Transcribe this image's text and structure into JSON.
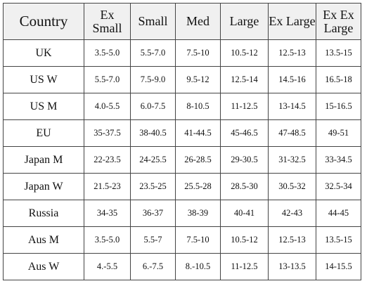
{
  "table": {
    "headers": [
      "Country",
      "Ex Small",
      "Small",
      "Med",
      "Large",
      "Ex Large",
      "Ex Ex Large"
    ],
    "rows": [
      [
        "UK",
        "3.5-5.0",
        "5.5-7.0",
        "7.5-10",
        "10.5-12",
        "12.5-13",
        "13.5-15"
      ],
      [
        "US W",
        "5.5-7.0",
        "7.5-9.0",
        "9.5-12",
        "12.5-14",
        "14.5-16",
        "16.5-18"
      ],
      [
        "US M",
        "4.0-5.5",
        "6.0-7.5",
        "8-10.5",
        "11-12.5",
        "13-14.5",
        "15-16.5"
      ],
      [
        "EU",
        "35-37.5",
        "38-40.5",
        "41-44.5",
        "45-46.5",
        "47-48.5",
        "49-51"
      ],
      [
        "Japan M",
        "22-23.5",
        "24-25.5",
        "26-28.5",
        "29-30.5",
        "31-32.5",
        "33-34.5"
      ],
      [
        "Japan W",
        "21.5-23",
        "23.5-25",
        "25.5-28",
        "28.5-30",
        "30.5-32",
        "32.5-34"
      ],
      [
        "Russia",
        "34-35",
        "36-37",
        "38-39",
        "40-41",
        "42-43",
        "44-45"
      ],
      [
        "Aus M",
        "3.5-5.0",
        "5.5-7",
        "7.5-10",
        "10.5-12",
        "12.5-13",
        "13.5-15"
      ],
      [
        "Aus W",
        "4.-5.5",
        "6.-7.5",
        "8.-10.5",
        "11-12.5",
        "13-13.5",
        "14-15.5"
      ]
    ]
  }
}
